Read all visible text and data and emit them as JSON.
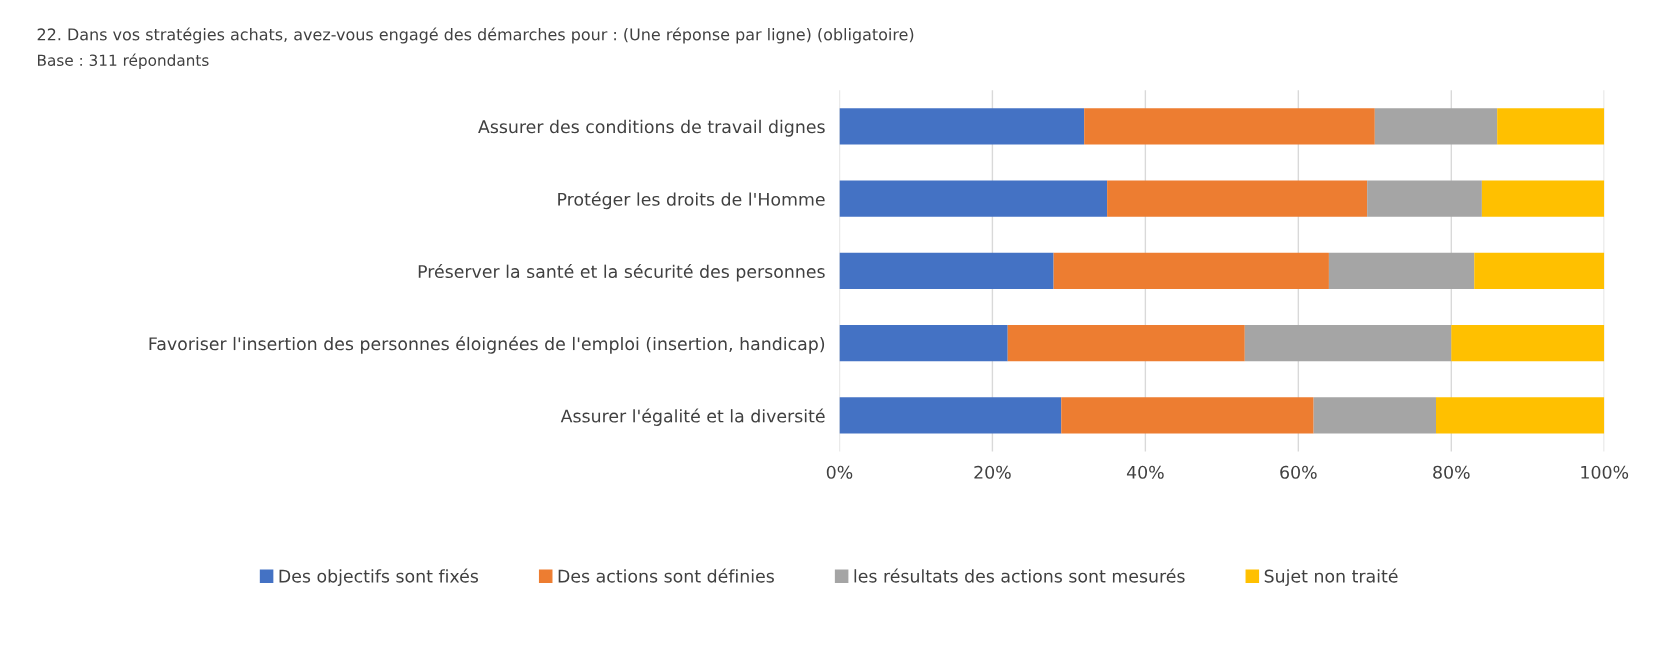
{
  "chart_data": {
    "type": "bar",
    "orientation": "horizontal",
    "stacked": true,
    "title": "22. Dans vos stratégies achats, avez-vous engagé des démarches pour : (Une réponse par ligne) (obligatoire)",
    "subtitle": "Base : 311 répondants",
    "categories": [
      "Assurer des conditions de travail dignes",
      "Protéger les droits de l'Homme",
      "Préserver la santé et la sécurité des personnes",
      "Favoriser l'insertion des personnes éloignées de l'emploi (insertion, handicap)",
      "Assurer l'égalité et la diversité"
    ],
    "series": [
      {
        "name": "Des objectifs sont fixés",
        "color": "#4472c4",
        "values": [
          32,
          35,
          28,
          22,
          29
        ]
      },
      {
        "name": "Des actions sont définies",
        "color": "#ed7d31",
        "values": [
          38,
          34,
          36,
          31,
          33
        ]
      },
      {
        "name": "les résultats des actions sont mesurés",
        "color": "#a5a5a5",
        "values": [
          16,
          15,
          19,
          27,
          16
        ]
      },
      {
        "name": "Sujet non traité",
        "color": "#ffc000",
        "values": [
          14,
          16,
          17,
          20,
          22
        ]
      }
    ],
    "xlim": [
      0,
      100
    ],
    "xticks": [
      {
        "value": 0,
        "label": "0%"
      },
      {
        "value": 20,
        "label": "20%"
      },
      {
        "value": 40,
        "label": "40%"
      },
      {
        "value": 60,
        "label": "60%"
      },
      {
        "value": 80,
        "label": "80%"
      },
      {
        "value": 100,
        "label": "100%"
      }
    ],
    "grid": "x",
    "legend": "bottom"
  }
}
